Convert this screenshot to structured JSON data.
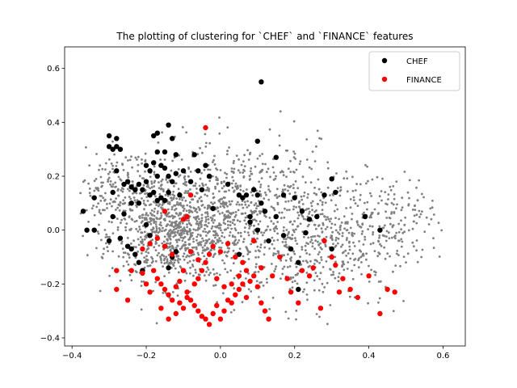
{
  "chart_data": {
    "type": "scatter",
    "title": "The plotting of clustering for `CHEF` and `FINANCE` features",
    "xlabel": "",
    "ylabel": "",
    "xlim": [
      -0.42,
      0.66
    ],
    "ylim": [
      -0.43,
      0.68
    ],
    "xticks": [
      -0.4,
      -0.2,
      0.0,
      0.2,
      0.4,
      0.6
    ],
    "xtick_labels": [
      "−0.4",
      "−0.2",
      "0.0",
      "0.2",
      "0.4",
      "0.6"
    ],
    "yticks": [
      -0.4,
      -0.2,
      0.0,
      0.2,
      0.4,
      0.6
    ],
    "ytick_labels": [
      "−0.4",
      "−0.2",
      "0.0",
      "0.2",
      "0.4",
      "0.6"
    ],
    "grid": false,
    "legend_position": "top-right",
    "background_color": "#808080",
    "series": [
      {
        "name": "CHEF",
        "color": "#000000",
        "points": [
          [
            -0.37,
            0.07
          ],
          [
            -0.36,
            0.0
          ],
          [
            -0.34,
            0.12
          ],
          [
            -0.34,
            0.0
          ],
          [
            -0.3,
            0.31
          ],
          [
            -0.3,
            0.35
          ],
          [
            -0.29,
            0.3
          ],
          [
            -0.28,
            0.34
          ],
          [
            -0.28,
            0.31
          ],
          [
            -0.27,
            0.3
          ],
          [
            -0.29,
            0.14
          ],
          [
            -0.28,
            0.22
          ],
          [
            -0.26,
            0.17
          ],
          [
            -0.25,
            0.18
          ],
          [
            -0.24,
            0.16
          ],
          [
            -0.23,
            0.15
          ],
          [
            -0.22,
            0.17
          ],
          [
            -0.21,
            0.15
          ],
          [
            -0.2,
            0.18
          ],
          [
            -0.19,
            0.13
          ],
          [
            -0.18,
            0.14
          ],
          [
            -0.17,
            0.11
          ],
          [
            -0.16,
            0.12
          ],
          [
            -0.15,
            0.11
          ],
          [
            -0.14,
            0.14
          ],
          [
            -0.2,
            0.24
          ],
          [
            -0.19,
            0.22
          ],
          [
            -0.18,
            0.25
          ],
          [
            -0.17,
            0.2
          ],
          [
            -0.16,
            0.24
          ],
          [
            -0.15,
            0.23
          ],
          [
            -0.14,
            0.2
          ],
          [
            -0.13,
            0.18
          ],
          [
            -0.12,
            0.21
          ],
          [
            -0.17,
            0.29
          ],
          [
            -0.15,
            0.29
          ],
          [
            -0.14,
            0.39
          ],
          [
            -0.13,
            0.34
          ],
          [
            -0.12,
            0.28
          ],
          [
            -0.18,
            0.35
          ],
          [
            -0.17,
            0.36
          ],
          [
            -0.11,
            0.13
          ],
          [
            -0.1,
            0.22
          ],
          [
            -0.08,
            0.18
          ],
          [
            -0.07,
            0.28
          ],
          [
            -0.06,
            0.22
          ],
          [
            -0.05,
            0.15
          ],
          [
            -0.04,
            0.24
          ],
          [
            -0.03,
            0.2
          ],
          [
            -0.02,
            0.08
          ],
          [
            -0.26,
            0.06
          ],
          [
            -0.27,
            -0.03
          ],
          [
            -0.25,
            -0.06
          ],
          [
            -0.24,
            -0.07
          ],
          [
            -0.23,
            -0.09
          ],
          [
            -0.22,
            -0.12
          ],
          [
            -0.21,
            -0.15
          ],
          [
            -0.2,
            0.02
          ],
          [
            -0.19,
            -0.02
          ],
          [
            -0.22,
            0.1
          ],
          [
            -0.24,
            0.1
          ],
          [
            -0.29,
            0.05
          ],
          [
            -0.3,
            -0.04
          ],
          [
            -0.13,
            -0.1
          ],
          [
            -0.14,
            -0.14
          ],
          [
            -0.12,
            -0.08
          ],
          [
            0.02,
            0.17
          ],
          [
            0.05,
            0.13
          ],
          [
            0.06,
            0.12
          ],
          [
            0.07,
            0.13
          ],
          [
            0.08,
            0.05
          ],
          [
            0.09,
            0.15
          ],
          [
            0.1,
            0.13
          ],
          [
            0.11,
            0.1
          ],
          [
            0.12,
            0.07
          ],
          [
            0.1,
            0.33
          ],
          [
            0.11,
            0.55
          ],
          [
            0.15,
            0.27
          ],
          [
            0.17,
            0.13
          ],
          [
            0.2,
            0.12
          ],
          [
            0.22,
            0.07
          ],
          [
            0.24,
            0.04
          ],
          [
            0.26,
            0.05
          ],
          [
            0.28,
            0.13
          ],
          [
            0.3,
            0.19
          ],
          [
            0.31,
            0.14
          ],
          [
            0.1,
            0.0
          ],
          [
            0.13,
            -0.04
          ],
          [
            0.15,
            0.05
          ],
          [
            0.17,
            -0.02
          ],
          [
            0.19,
            -0.07
          ],
          [
            0.21,
            -0.12
          ],
          [
            0.23,
            -0.01
          ],
          [
            0.05,
            -0.09
          ],
          [
            0.21,
            -0.22
          ],
          [
            0.3,
            -0.07
          ],
          [
            0.39,
            0.05
          ],
          [
            0.43,
            0.0
          ],
          [
            0.08,
            0.03
          ]
        ]
      },
      {
        "name": "FINANCE",
        "color": "#ff0000",
        "points": [
          [
            -0.04,
            0.38
          ],
          [
            -0.08,
            0.13
          ],
          [
            -0.09,
            0.05
          ],
          [
            -0.1,
            0.04
          ],
          [
            -0.15,
            0.07
          ],
          [
            -0.24,
            -0.15
          ],
          [
            -0.25,
            -0.26
          ],
          [
            -0.28,
            -0.15
          ],
          [
            -0.28,
            -0.22
          ],
          [
            -0.21,
            -0.16
          ],
          [
            -0.2,
            -0.2
          ],
          [
            -0.19,
            -0.23
          ],
          [
            -0.18,
            -0.15
          ],
          [
            -0.17,
            -0.18
          ],
          [
            -0.16,
            -0.2
          ],
          [
            -0.15,
            -0.22
          ],
          [
            -0.14,
            -0.24
          ],
          [
            -0.13,
            -0.26
          ],
          [
            -0.12,
            -0.21
          ],
          [
            -0.11,
            -0.19
          ],
          [
            -0.1,
            -0.15
          ],
          [
            -0.09,
            -0.23
          ],
          [
            -0.08,
            -0.26
          ],
          [
            -0.07,
            -0.28
          ],
          [
            -0.06,
            -0.3
          ],
          [
            -0.05,
            -0.32
          ],
          [
            -0.04,
            -0.33
          ],
          [
            -0.03,
            -0.35
          ],
          [
            -0.02,
            -0.31
          ],
          [
            -0.01,
            -0.28
          ],
          [
            0.0,
            -0.33
          ],
          [
            0.01,
            -0.3
          ],
          [
            0.02,
            -0.26
          ],
          [
            0.03,
            -0.27
          ],
          [
            0.04,
            -0.24
          ],
          [
            0.05,
            -0.22
          ],
          [
            0.06,
            -0.2
          ],
          [
            0.07,
            -0.25
          ],
          [
            0.08,
            -0.19
          ],
          [
            0.09,
            -0.17
          ],
          [
            0.1,
            -0.21
          ],
          [
            0.11,
            -0.27
          ],
          [
            0.12,
            -0.3
          ],
          [
            0.13,
            -0.33
          ],
          [
            -0.16,
            -0.29
          ],
          [
            -0.14,
            -0.33
          ],
          [
            -0.12,
            -0.31
          ],
          [
            -0.11,
            -0.27
          ],
          [
            -0.1,
            -0.29
          ],
          [
            -0.09,
            -0.25
          ],
          [
            -0.07,
            -0.2
          ],
          [
            -0.06,
            -0.18
          ],
          [
            -0.05,
            -0.15
          ],
          [
            -0.04,
            -0.12
          ],
          [
            -0.03,
            -0.09
          ],
          [
            -0.02,
            -0.06
          ],
          [
            0.0,
            -0.08
          ],
          [
            0.02,
            -0.05
          ],
          [
            0.04,
            -0.1
          ],
          [
            0.06,
            -0.12
          ],
          [
            0.07,
            -0.15
          ],
          [
            0.05,
            -0.17
          ],
          [
            0.03,
            -0.2
          ],
          [
            -0.19,
            -0.05
          ],
          [
            -0.21,
            -0.07
          ],
          [
            -0.17,
            -0.03
          ],
          [
            -0.15,
            -0.06
          ],
          [
            -0.13,
            -0.09
          ],
          [
            -0.01,
            -0.18
          ],
          [
            0.01,
            -0.21
          ],
          [
            0.18,
            -0.18
          ],
          [
            0.19,
            -0.23
          ],
          [
            0.21,
            -0.27
          ],
          [
            0.22,
            -0.15
          ],
          [
            0.24,
            -0.17
          ],
          [
            0.25,
            -0.14
          ],
          [
            0.27,
            -0.29
          ],
          [
            0.3,
            -0.1
          ],
          [
            0.31,
            -0.13
          ],
          [
            0.32,
            -0.23
          ],
          [
            0.33,
            -0.18
          ],
          [
            0.35,
            -0.22
          ],
          [
            0.37,
            -0.25
          ],
          [
            0.4,
            -0.17
          ],
          [
            0.43,
            -0.31
          ],
          [
            0.45,
            -0.22
          ],
          [
            0.47,
            -0.23
          ],
          [
            0.28,
            -0.04
          ],
          [
            0.14,
            -0.17
          ],
          [
            0.16,
            -0.1
          ],
          [
            -0.08,
            -0.08
          ],
          [
            -0.06,
            -0.11
          ],
          [
            0.09,
            -0.04
          ],
          [
            0.11,
            -0.14
          ]
        ]
      }
    ]
  }
}
